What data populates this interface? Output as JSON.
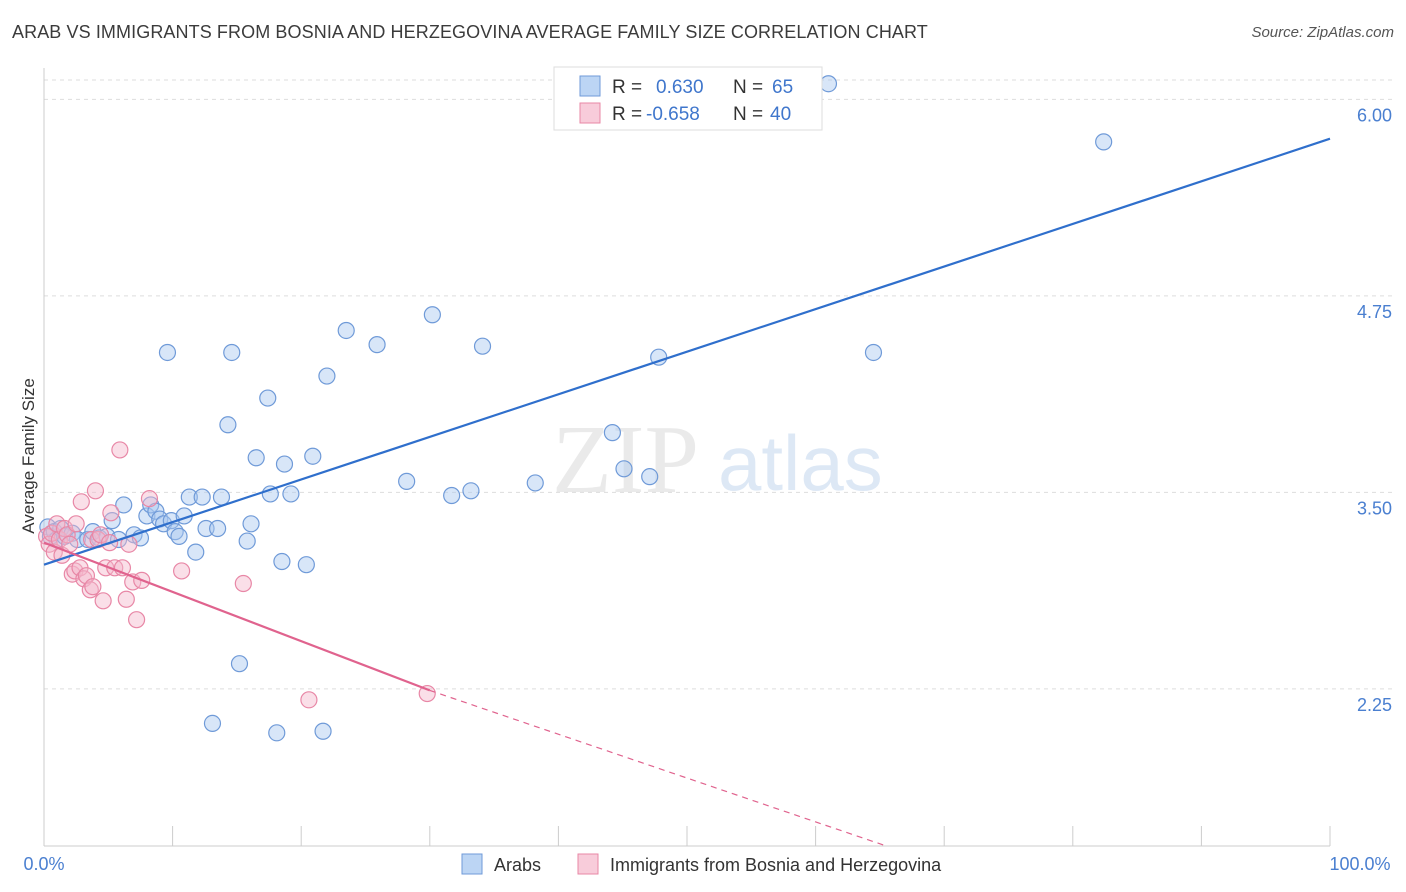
{
  "header": {
    "title": "ARAB VS IMMIGRANTS FROM BOSNIA AND HERZEGOVINA AVERAGE FAMILY SIZE CORRELATION CHART",
    "source": "Source: ZipAtlas.com"
  },
  "watermark": {
    "zip": "ZIP",
    "atlas": "atlas"
  },
  "colors": {
    "blue_fill": "#a9c8f0",
    "blue_stroke": "#6f9ad8",
    "blue_line": "#2f6fcc",
    "pink_fill": "#f5b8cb",
    "pink_stroke": "#e887a6",
    "pink_line": "#e0638e",
    "axis_label": "#4a7fd0",
    "grid": "#dddddd"
  },
  "stats_box": {
    "rows": [
      {
        "r_label": "R =",
        "r_value": "0.630",
        "n_label": "N =",
        "n_value": "65"
      },
      {
        "r_label": "R =",
        "r_value": "-0.658",
        "n_label": "N =",
        "n_value": "40"
      }
    ]
  },
  "chart_data": {
    "type": "scatter",
    "title": "ARAB VS IMMIGRANTS FROM BOSNIA AND HERZEGOVINA AVERAGE FAMILY SIZE CORRELATION CHART",
    "xlabel": "",
    "ylabel": "Average Family Size",
    "xlim": [
      0,
      100
    ],
    "ylim": [
      1.25,
      6.2
    ],
    "x_tick_labels": [
      "0.0%",
      "100.0%"
    ],
    "y_ticks": [
      2.25,
      3.5,
      4.75,
      6.0
    ],
    "y_tick_labels": [
      "2.25",
      "3.50",
      "4.75",
      "6.00"
    ],
    "grid": true,
    "legend_position": "bottom-center",
    "series": [
      {
        "name": "Arabs",
        "color": "#a9c8f0",
        "points": [
          [
            0.3,
            3.28
          ],
          [
            0.5,
            3.22
          ],
          [
            0.8,
            3.25
          ],
          [
            1.0,
            3.2
          ],
          [
            1.3,
            3.27
          ],
          [
            1.6,
            3.22
          ],
          [
            2.2,
            3.24
          ],
          [
            2.6,
            3.2
          ],
          [
            3.4,
            3.2
          ],
          [
            3.8,
            3.25
          ],
          [
            4.3,
            3.21
          ],
          [
            4.9,
            3.22
          ],
          [
            5.3,
            3.32
          ],
          [
            5.8,
            3.2
          ],
          [
            6.2,
            3.42
          ],
          [
            7.0,
            3.23
          ],
          [
            7.5,
            3.21
          ],
          [
            8.0,
            3.35
          ],
          [
            8.3,
            3.42
          ],
          [
            8.7,
            3.38
          ],
          [
            9.0,
            3.33
          ],
          [
            9.3,
            3.3
          ],
          [
            9.6,
            4.39
          ],
          [
            9.9,
            3.32
          ],
          [
            10.2,
            3.25
          ],
          [
            10.5,
            3.22
          ],
          [
            10.9,
            3.35
          ],
          [
            11.3,
            3.47
          ],
          [
            11.8,
            3.12
          ],
          [
            12.3,
            3.47
          ],
          [
            12.6,
            3.27
          ],
          [
            13.1,
            2.03
          ],
          [
            13.5,
            3.27
          ],
          [
            13.8,
            3.47
          ],
          [
            14.3,
            3.93
          ],
          [
            14.6,
            4.39
          ],
          [
            15.2,
            2.41
          ],
          [
            15.8,
            3.19
          ],
          [
            16.1,
            3.3
          ],
          [
            16.5,
            3.72
          ],
          [
            17.4,
            4.1
          ],
          [
            17.6,
            3.49
          ],
          [
            18.1,
            1.97
          ],
          [
            18.5,
            3.06
          ],
          [
            18.7,
            3.68
          ],
          [
            19.2,
            3.49
          ],
          [
            20.4,
            3.04
          ],
          [
            20.9,
            3.73
          ],
          [
            21.7,
            1.98
          ],
          [
            22.0,
            4.24
          ],
          [
            23.5,
            4.53
          ],
          [
            25.9,
            4.44
          ],
          [
            28.2,
            3.57
          ],
          [
            30.2,
            4.63
          ],
          [
            31.7,
            3.48
          ],
          [
            33.2,
            3.51
          ],
          [
            34.1,
            4.43
          ],
          [
            38.2,
            3.56
          ],
          [
            44.2,
            3.88
          ],
          [
            45.1,
            3.65
          ],
          [
            47.1,
            3.6
          ],
          [
            47.8,
            4.36
          ],
          [
            61.0,
            6.1
          ],
          [
            64.5,
            4.39
          ],
          [
            82.4,
            5.73
          ]
        ],
        "trend": {
          "x0": 0,
          "y0": 3.04,
          "x1": 100,
          "y1": 5.75
        }
      },
      {
        "name": "Immigrants from Bosnia and Herzegovina",
        "color": "#f5b8cb",
        "points": [
          [
            0.2,
            3.22
          ],
          [
            0.4,
            3.17
          ],
          [
            0.6,
            3.24
          ],
          [
            0.8,
            3.12
          ],
          [
            1.0,
            3.3
          ],
          [
            1.2,
            3.2
          ],
          [
            1.4,
            3.1
          ],
          [
            1.6,
            3.27
          ],
          [
            1.8,
            3.23
          ],
          [
            2.0,
            3.17
          ],
          [
            2.2,
            2.98
          ],
          [
            2.4,
            3.0
          ],
          [
            2.5,
            3.3
          ],
          [
            2.8,
            3.02
          ],
          [
            2.9,
            3.44
          ],
          [
            3.1,
            2.95
          ],
          [
            3.3,
            2.97
          ],
          [
            3.6,
            2.88
          ],
          [
            3.7,
            3.2
          ],
          [
            3.8,
            2.9
          ],
          [
            4.0,
            3.51
          ],
          [
            4.2,
            3.2
          ],
          [
            4.4,
            3.23
          ],
          [
            4.6,
            2.81
          ],
          [
            4.8,
            3.02
          ],
          [
            5.1,
            3.18
          ],
          [
            5.2,
            3.37
          ],
          [
            5.5,
            3.02
          ],
          [
            5.9,
            3.77
          ],
          [
            6.1,
            3.02
          ],
          [
            6.4,
            2.82
          ],
          [
            6.6,
            3.17
          ],
          [
            6.9,
            2.93
          ],
          [
            7.2,
            2.69
          ],
          [
            7.6,
            2.94
          ],
          [
            8.2,
            3.46
          ],
          [
            10.7,
            3.0
          ],
          [
            15.5,
            2.92
          ],
          [
            20.6,
            2.18
          ],
          [
            29.8,
            2.22
          ]
        ],
        "trend": {
          "x0": 0,
          "y0": 3.18,
          "x1": 30,
          "y1": 2.24
        },
        "trend_extension": {
          "x0": 30,
          "y0": 2.24,
          "x1": 65.5,
          "y1": 1.25
        }
      }
    ]
  }
}
